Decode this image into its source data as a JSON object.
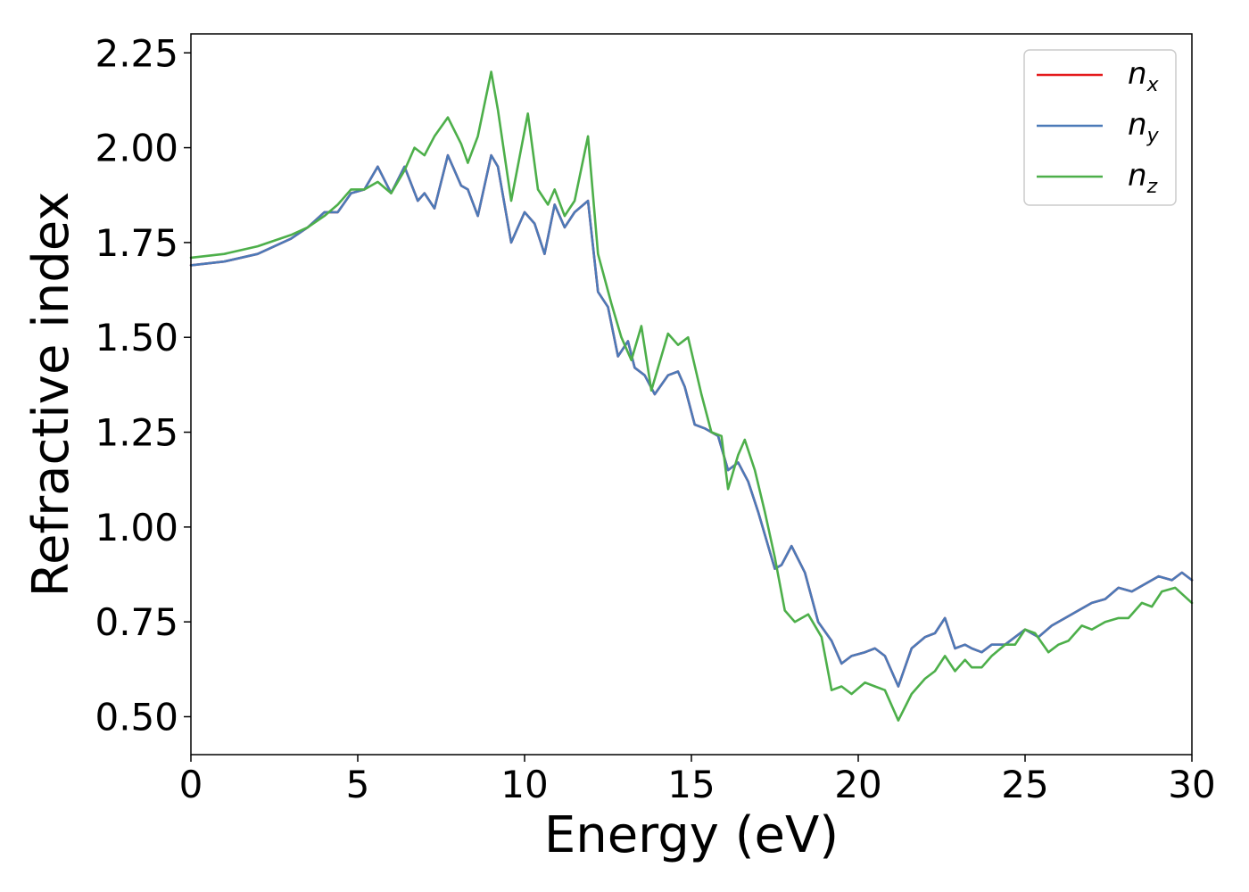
{
  "chart_data": {
    "type": "line",
    "xlabel": "Energy (eV)",
    "ylabel": "Refractive index",
    "xlim": [
      0,
      30
    ],
    "ylim": [
      0.4,
      2.3
    ],
    "xticks": [
      0,
      5,
      10,
      15,
      20,
      25,
      30
    ],
    "yticks": [
      0.5,
      0.75,
      1.0,
      1.25,
      1.5,
      1.75,
      2.0,
      2.25
    ],
    "xtick_labels": [
      "0",
      "5",
      "10",
      "15",
      "20",
      "25",
      "30"
    ],
    "ytick_labels": [
      "0.50",
      "0.75",
      "1.00",
      "1.25",
      "1.50",
      "1.75",
      "2.00",
      "2.25"
    ],
    "grid": false,
    "legend_position": "top-right",
    "series": [
      {
        "name": "n_x",
        "label_base": "n",
        "label_sub": "x",
        "color": "#e41a1c",
        "x": [
          0,
          1,
          2,
          3,
          3.5,
          4,
          4.4,
          4.8,
          5.2,
          5.6,
          6.0,
          6.4,
          6.8,
          7.0,
          7.3,
          7.7,
          8.1,
          8.3,
          8.6,
          9.0,
          9.2,
          9.6,
          10.0,
          10.3,
          10.6,
          10.9,
          11.2,
          11.5,
          11.9,
          12.2,
          12.5,
          12.8,
          13.1,
          13.3,
          13.6,
          13.9,
          14.3,
          14.6,
          14.8,
          15.1,
          15.4,
          15.8,
          16.1,
          16.4,
          16.7,
          17.0,
          17.5,
          17.7,
          18.0,
          18.4,
          18.8,
          19.2,
          19.5,
          19.8,
          20.2,
          20.5,
          20.8,
          21.2,
          21.6,
          22.0,
          22.3,
          22.6,
          22.9,
          23.2,
          23.4,
          23.7,
          24.0,
          24.4,
          24.7,
          25.0,
          25.4,
          25.8,
          26.2,
          26.6,
          27.0,
          27.4,
          27.8,
          28.2,
          28.6,
          29.0,
          29.4,
          29.7,
          30.0
        ],
        "y": [
          1.69,
          1.7,
          1.72,
          1.76,
          1.79,
          1.83,
          1.83,
          1.88,
          1.89,
          1.95,
          1.88,
          1.95,
          1.86,
          1.88,
          1.84,
          1.98,
          1.9,
          1.89,
          1.82,
          1.98,
          1.95,
          1.75,
          1.83,
          1.8,
          1.72,
          1.85,
          1.79,
          1.83,
          1.86,
          1.62,
          1.58,
          1.45,
          1.49,
          1.42,
          1.4,
          1.35,
          1.4,
          1.41,
          1.37,
          1.27,
          1.26,
          1.24,
          1.15,
          1.17,
          1.12,
          1.04,
          0.89,
          0.9,
          0.95,
          0.88,
          0.75,
          0.7,
          0.64,
          0.66,
          0.67,
          0.68,
          0.66,
          0.58,
          0.68,
          0.71,
          0.72,
          0.76,
          0.68,
          0.69,
          0.68,
          0.67,
          0.69,
          0.69,
          0.71,
          0.73,
          0.71,
          0.74,
          0.76,
          0.78,
          0.8,
          0.81,
          0.84,
          0.83,
          0.85,
          0.87,
          0.86,
          0.88,
          0.86
        ]
      },
      {
        "name": "n_y",
        "label_base": "n",
        "label_sub": "y",
        "color": "#4c7ab8",
        "x": [
          0,
          1,
          2,
          3,
          3.5,
          4,
          4.4,
          4.8,
          5.2,
          5.6,
          6.0,
          6.4,
          6.8,
          7.0,
          7.3,
          7.7,
          8.1,
          8.3,
          8.6,
          9.0,
          9.2,
          9.6,
          10.0,
          10.3,
          10.6,
          10.9,
          11.2,
          11.5,
          11.9,
          12.2,
          12.5,
          12.8,
          13.1,
          13.3,
          13.6,
          13.9,
          14.3,
          14.6,
          14.8,
          15.1,
          15.4,
          15.8,
          16.1,
          16.4,
          16.7,
          17.0,
          17.5,
          17.7,
          18.0,
          18.4,
          18.8,
          19.2,
          19.5,
          19.8,
          20.2,
          20.5,
          20.8,
          21.2,
          21.6,
          22.0,
          22.3,
          22.6,
          22.9,
          23.2,
          23.4,
          23.7,
          24.0,
          24.4,
          24.7,
          25.0,
          25.4,
          25.8,
          26.2,
          26.6,
          27.0,
          27.4,
          27.8,
          28.2,
          28.6,
          29.0,
          29.4,
          29.7,
          30.0
        ],
        "y": [
          1.69,
          1.7,
          1.72,
          1.76,
          1.79,
          1.83,
          1.83,
          1.88,
          1.89,
          1.95,
          1.88,
          1.95,
          1.86,
          1.88,
          1.84,
          1.98,
          1.9,
          1.89,
          1.82,
          1.98,
          1.95,
          1.75,
          1.83,
          1.8,
          1.72,
          1.85,
          1.79,
          1.83,
          1.86,
          1.62,
          1.58,
          1.45,
          1.49,
          1.42,
          1.4,
          1.35,
          1.4,
          1.41,
          1.37,
          1.27,
          1.26,
          1.24,
          1.15,
          1.17,
          1.12,
          1.04,
          0.89,
          0.9,
          0.95,
          0.88,
          0.75,
          0.7,
          0.64,
          0.66,
          0.67,
          0.68,
          0.66,
          0.58,
          0.68,
          0.71,
          0.72,
          0.76,
          0.68,
          0.69,
          0.68,
          0.67,
          0.69,
          0.69,
          0.71,
          0.73,
          0.71,
          0.74,
          0.76,
          0.78,
          0.8,
          0.81,
          0.84,
          0.83,
          0.85,
          0.87,
          0.86,
          0.88,
          0.86
        ]
      },
      {
        "name": "n_z",
        "label_base": "n",
        "label_sub": "z",
        "color": "#4daf4a",
        "x": [
          0,
          1,
          2,
          3,
          3.5,
          4,
          4.4,
          4.8,
          5.2,
          5.6,
          6.0,
          6.4,
          6.7,
          7.0,
          7.3,
          7.7,
          8.1,
          8.3,
          8.6,
          9.0,
          9.2,
          9.6,
          10.1,
          10.4,
          10.7,
          10.9,
          11.2,
          11.5,
          11.9,
          12.2,
          12.6,
          12.9,
          13.2,
          13.5,
          13.8,
          14.3,
          14.6,
          14.9,
          15.3,
          15.6,
          15.9,
          16.1,
          16.4,
          16.6,
          16.9,
          17.2,
          17.5,
          17.8,
          18.1,
          18.5,
          18.9,
          19.2,
          19.5,
          19.8,
          20.2,
          20.5,
          20.8,
          21.2,
          21.6,
          22.0,
          22.3,
          22.6,
          22.9,
          23.2,
          23.4,
          23.7,
          24.0,
          24.4,
          24.7,
          25.0,
          25.3,
          25.7,
          26.0,
          26.3,
          26.7,
          27.0,
          27.4,
          27.8,
          28.1,
          28.5,
          28.8,
          29.1,
          29.5,
          30.0
        ],
        "y": [
          1.71,
          1.72,
          1.74,
          1.77,
          1.79,
          1.82,
          1.85,
          1.89,
          1.89,
          1.91,
          1.88,
          1.94,
          2.0,
          1.98,
          2.03,
          2.08,
          2.01,
          1.96,
          2.03,
          2.2,
          2.1,
          1.86,
          2.09,
          1.89,
          1.85,
          1.89,
          1.82,
          1.86,
          2.03,
          1.72,
          1.59,
          1.5,
          1.44,
          1.53,
          1.36,
          1.51,
          1.48,
          1.5,
          1.35,
          1.25,
          1.24,
          1.1,
          1.19,
          1.23,
          1.15,
          1.04,
          0.92,
          0.78,
          0.75,
          0.77,
          0.71,
          0.57,
          0.58,
          0.56,
          0.59,
          0.58,
          0.57,
          0.49,
          0.56,
          0.6,
          0.62,
          0.66,
          0.62,
          0.65,
          0.63,
          0.63,
          0.66,
          0.69,
          0.69,
          0.73,
          0.72,
          0.67,
          0.69,
          0.7,
          0.74,
          0.73,
          0.75,
          0.76,
          0.76,
          0.8,
          0.79,
          0.83,
          0.84,
          0.8
        ]
      }
    ]
  }
}
